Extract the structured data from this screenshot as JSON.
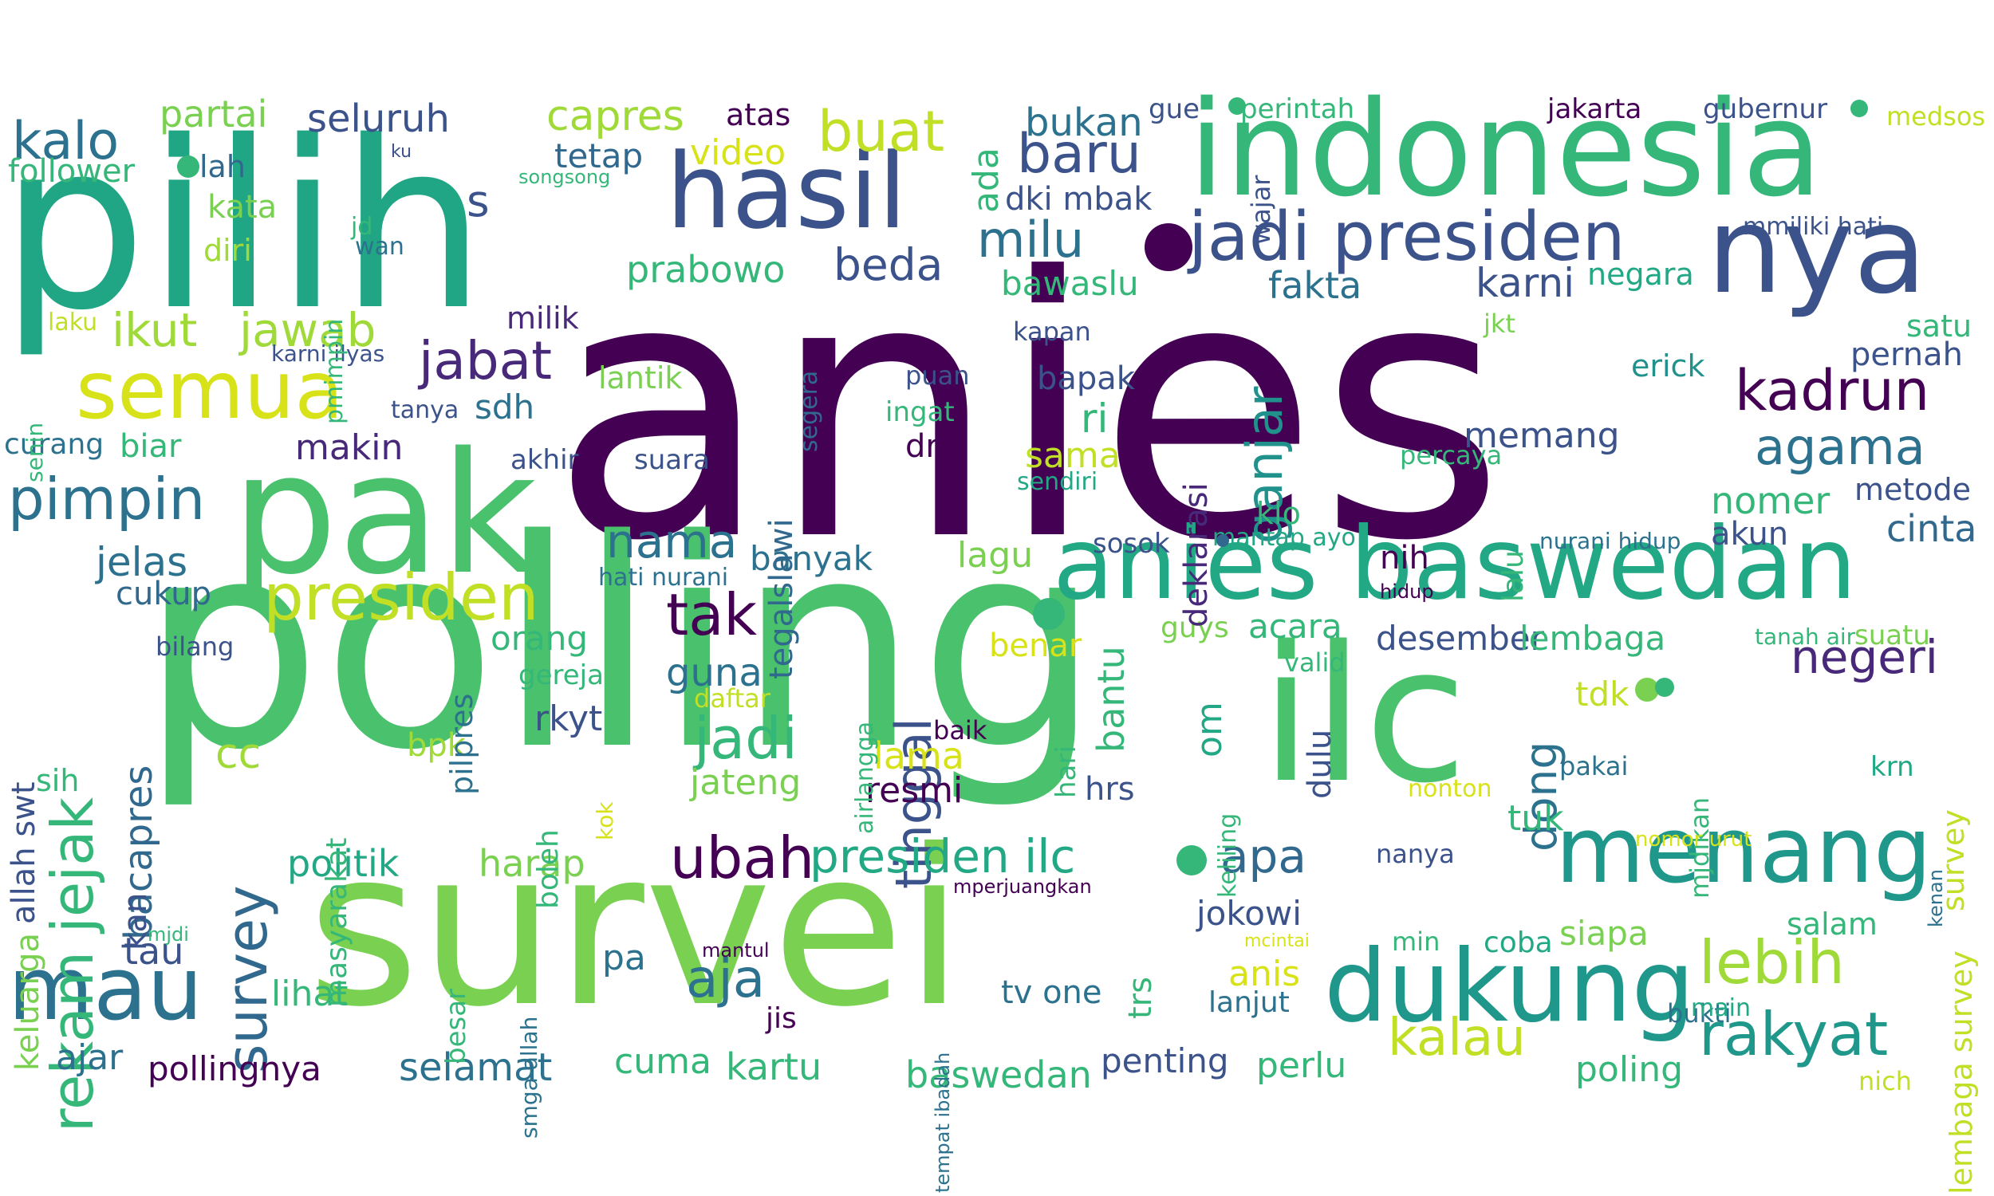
{
  "palette": {
    "deep_purple": "#440154",
    "indigo": "#3b528b",
    "blue": "#31688e",
    "teal": "#21918c",
    "green": "#35b779",
    "lime": "#90d743",
    "yellow": "#c8e020",
    "bright_yellow": "#fde725"
  },
  "words": [
    {
      "text": "anies",
      "color": "#440154"
    },
    {
      "text": "polling",
      "color": "#4ac16d"
    },
    {
      "text": "survei",
      "color": "#7ad151"
    },
    {
      "text": "pilih",
      "color": "#21a685"
    },
    {
      "text": "ilc",
      "color": "#4ac16d"
    },
    {
      "text": "pak",
      "color": "#4ac16d"
    },
    {
      "text": "indonesia",
      "color": "#35b779"
    },
    {
      "text": "anies baswedan",
      "color": "#22a884"
    },
    {
      "text": "dukung",
      "color": "#1f988b"
    },
    {
      "text": "menang",
      "color": "#1f988b"
    },
    {
      "text": "nya",
      "color": "#3b528b"
    },
    {
      "text": "hasil",
      "color": "#3b528b"
    },
    {
      "text": "jadi presiden",
      "color": "#3b528b"
    },
    {
      "text": "semua",
      "color": "#d8e219"
    },
    {
      "text": "presiden",
      "color": "#c0df25"
    },
    {
      "text": "mau",
      "color": "#2c728e"
    },
    {
      "text": "rekam jejak",
      "color": "#35b779"
    },
    {
      "text": "survey",
      "color": "#31688e"
    },
    {
      "text": "pimpin",
      "color": "#2c728e"
    },
    {
      "text": "ubah",
      "color": "#440154"
    },
    {
      "text": "lebih",
      "color": "#a0da39"
    },
    {
      "text": "rakyat",
      "color": "#1f988b"
    },
    {
      "text": "agama",
      "color": "#2c728e"
    },
    {
      "text": "kadrun",
      "color": "#440154"
    },
    {
      "text": "kalo",
      "color": "#2c728e"
    },
    {
      "text": "tak",
      "color": "#440154"
    },
    {
      "text": "jadi",
      "color": "#35b779"
    },
    {
      "text": "tinggal",
      "color": "#3b528b"
    },
    {
      "text": "aja",
      "color": "#2c728e"
    },
    {
      "text": "kalau",
      "color": "#c0df25"
    },
    {
      "text": "buat",
      "color": "#c0df25"
    },
    {
      "text": "baru",
      "color": "#3b528b"
    },
    {
      "text": "milu",
      "color": "#2c728e"
    },
    {
      "text": "beda",
      "color": "#3b528b"
    },
    {
      "text": "ganjar",
      "color": "#21918c"
    },
    {
      "text": "jabat",
      "color": "#482878"
    },
    {
      "text": "ikut",
      "color": "#a0da39"
    },
    {
      "text": "jawab",
      "color": "#a0da39"
    },
    {
      "text": "nama",
      "color": "#2c728e"
    },
    {
      "text": "negeri",
      "color": "#482878"
    },
    {
      "text": "apa",
      "color": "#31688e"
    },
    {
      "text": "presiden ilc",
      "color": "#22a884"
    },
    {
      "text": "dong",
      "color": "#2c728e"
    },
    {
      "text": "s",
      "color": "#3b528b"
    },
    {
      "text": "capres",
      "color": "#a0da39"
    },
    {
      "text": "partai",
      "color": "#7ad151"
    },
    {
      "text": "seluruh",
      "color": "#3b528b"
    },
    {
      "text": "bukan",
      "color": "#2c728e"
    },
    {
      "text": "prabowo",
      "color": "#35b779"
    },
    {
      "text": "video",
      "color": "#d8e219"
    },
    {
      "text": "tetap",
      "color": "#31688e"
    },
    {
      "text": "atas",
      "color": "#440154"
    },
    {
      "text": "follower",
      "color": "#35b779"
    },
    {
      "text": "lah",
      "color": "#31688e"
    },
    {
      "text": "kata",
      "color": "#7ad151"
    },
    {
      "text": "diri",
      "color": "#a0da39"
    },
    {
      "text": "jelas",
      "color": "#2c728e"
    },
    {
      "text": "cukup",
      "color": "#31688e"
    },
    {
      "text": "biar",
      "color": "#35b779"
    },
    {
      "text": "curang",
      "color": "#2c728e"
    },
    {
      "text": "makin",
      "color": "#482878"
    },
    {
      "text": "sdh",
      "color": "#2c728e"
    },
    {
      "text": "lantik",
      "color": "#7ad151"
    },
    {
      "text": "milik",
      "color": "#482878"
    },
    {
      "text": "bacapres",
      "color": "#31688e"
    },
    {
      "text": "kan",
      "color": "#3b528b"
    },
    {
      "text": "cc",
      "color": "#a0da39"
    },
    {
      "text": "politik",
      "color": "#22a884"
    },
    {
      "text": "harap",
      "color": "#7ad151"
    },
    {
      "text": "tau",
      "color": "#3b528b"
    },
    {
      "text": "ajar",
      "color": "#2c728e"
    },
    {
      "text": "pollingnya",
      "color": "#440154"
    },
    {
      "text": "selamat",
      "color": "#2c728e"
    },
    {
      "text": "cuma",
      "color": "#35b779"
    },
    {
      "text": "kartu",
      "color": "#35b779"
    },
    {
      "text": "baswedan",
      "color": "#35b779"
    },
    {
      "text": "penting",
      "color": "#3b528b"
    },
    {
      "text": "perlu",
      "color": "#35b779"
    },
    {
      "text": "poling",
      "color": "#35b779"
    },
    {
      "text": "bukti",
      "color": "#2c728e"
    },
    {
      "text": "nich",
      "color": "#c0df25"
    },
    {
      "text": "lihat",
      "color": "#35b779"
    },
    {
      "text": "pa",
      "color": "#2c728e"
    },
    {
      "text": "jis",
      "color": "#440154"
    },
    {
      "text": "tv one",
      "color": "#2c728e"
    },
    {
      "text": "trs",
      "color": "#35b779"
    },
    {
      "text": "lanjut",
      "color": "#2c728e"
    },
    {
      "text": "anis",
      "color": "#d8e219"
    },
    {
      "text": "jokowi",
      "color": "#3b528b"
    },
    {
      "text": "siapa",
      "color": "#7ad151"
    },
    {
      "text": "coba",
      "color": "#22a884"
    },
    {
      "text": "min",
      "color": "#35b779"
    },
    {
      "text": "salam",
      "color": "#35b779"
    },
    {
      "text": "main",
      "color": "#22a884"
    },
    {
      "text": "tuk",
      "color": "#35b779"
    },
    {
      "text": "nanya",
      "color": "#3b528b"
    },
    {
      "text": "nonton",
      "color": "#d8e219"
    },
    {
      "text": "pakai",
      "color": "#2c728e"
    },
    {
      "text": "tdk",
      "color": "#c0df25"
    },
    {
      "text": "krn",
      "color": "#22a884"
    },
    {
      "text": "banyak",
      "color": "#2c728e"
    },
    {
      "text": "lagu",
      "color": "#7ad151"
    },
    {
      "text": "guna",
      "color": "#2c728e"
    },
    {
      "text": "lama",
      "color": "#d8e219"
    },
    {
      "text": "resmi",
      "color": "#440154"
    },
    {
      "text": "jateng",
      "color": "#7ad151"
    },
    {
      "text": "rkyt",
      "color": "#3b528b"
    },
    {
      "text": "orang",
      "color": "#35b779"
    },
    {
      "text": "gereja",
      "color": "#35b779"
    },
    {
      "text": "daftar",
      "color": "#c0df25"
    },
    {
      "text": "bpk",
      "color": "#a0da39"
    },
    {
      "text": "benar",
      "color": "#d8e219"
    },
    {
      "text": "bantu",
      "color": "#35b779"
    },
    {
      "text": "hrs",
      "color": "#3b528b"
    },
    {
      "text": "om",
      "color": "#22a884"
    },
    {
      "text": "dulu",
      "color": "#3b528b"
    },
    {
      "text": "acara",
      "color": "#35b779"
    },
    {
      "text": "desember",
      "color": "#3b528b"
    },
    {
      "text": "lembaga",
      "color": "#35b779"
    },
    {
      "text": "guys",
      "color": "#7ad151"
    },
    {
      "text": "valid",
      "color": "#35b779"
    },
    {
      "text": "nih",
      "color": "#440154"
    },
    {
      "text": "klo",
      "color": "#35b779"
    },
    {
      "text": "memang",
      "color": "#3b528b"
    },
    {
      "text": "nomer",
      "color": "#35b779"
    },
    {
      "text": "akun",
      "color": "#3b528b"
    },
    {
      "text": "cinta",
      "color": "#31688e"
    },
    {
      "text": "metode",
      "color": "#3b528b"
    },
    {
      "text": "pernah",
      "color": "#3b528b"
    },
    {
      "text": "satu",
      "color": "#35b779"
    },
    {
      "text": "erick",
      "color": "#21918c"
    },
    {
      "text": "karni",
      "color": "#3b528b"
    },
    {
      "text": "negara",
      "color": "#22a884"
    },
    {
      "text": "fakta",
      "color": "#2c728e"
    },
    {
      "text": "bawaslu",
      "color": "#35b779"
    },
    {
      "text": "dki mbak",
      "color": "#3b528b"
    },
    {
      "text": "ada",
      "color": "#35b779"
    },
    {
      "text": "gue",
      "color": "#3b528b"
    },
    {
      "text": "perintah",
      "color": "#35b779"
    },
    {
      "text": "wajar",
      "color": "#3b528b"
    },
    {
      "text": "jakarta",
      "color": "#440154"
    },
    {
      "text": "gubernur",
      "color": "#3b528b"
    },
    {
      "text": "medsos",
      "color": "#c0df25"
    },
    {
      "text": "mmiliki hati",
      "color": "#3b528b"
    },
    {
      "text": "jkt",
      "color": "#7ad151"
    },
    {
      "text": "kapan",
      "color": "#3b528b"
    },
    {
      "text": "puan",
      "color": "#3b528b"
    },
    {
      "text": "ingat",
      "color": "#35b779"
    },
    {
      "text": "bapak",
      "color": "#3b528b"
    },
    {
      "text": "ri",
      "color": "#35b779"
    },
    {
      "text": "dr",
      "color": "#440154"
    },
    {
      "text": "sama",
      "color": "#c0df25"
    },
    {
      "text": "sendiri",
      "color": "#22a884"
    },
    {
      "text": "deklarasi",
      "color": "#482878"
    },
    {
      "text": "percaya",
      "color": "#35b779"
    },
    {
      "text": "lalu",
      "color": "#35b779"
    },
    {
      "text": "sosok",
      "color": "#3b528b"
    },
    {
      "text": "mantap ayo",
      "color": "#22a884"
    },
    {
      "text": "nurani hidup",
      "color": "#2c728e"
    },
    {
      "text": "hidup",
      "color": "#440154"
    },
    {
      "text": "tanah air",
      "color": "#35b779"
    },
    {
      "text": "suatu",
      "color": "#7ad151"
    },
    {
      "text": "akhir",
      "color": "#3b528b"
    },
    {
      "text": "suara",
      "color": "#3b528b"
    },
    {
      "text": "tegalslawi",
      "color": "#31688e"
    },
    {
      "text": "segera",
      "color": "#31688e"
    },
    {
      "text": "hati nurani",
      "color": "#2c728e"
    },
    {
      "text": "airlangga",
      "color": "#35b779"
    },
    {
      "text": "baik",
      "color": "#440154"
    },
    {
      "text": "hari",
      "color": "#35b779"
    },
    {
      "text": "keliling",
      "color": "#35b779"
    },
    {
      "text": "mjdikan",
      "color": "#35b779"
    },
    {
      "text": "survey",
      "color": "#c0df25"
    },
    {
      "text": "lembaga survey",
      "color": "#c0df25"
    },
    {
      "text": "nomor urut",
      "color": "#d8e219"
    },
    {
      "text": "kenan",
      "color": "#2c728e"
    },
    {
      "text": "mperjuangkan",
      "color": "#440154"
    },
    {
      "text": "mcintai",
      "color": "#d8e219"
    },
    {
      "text": "mantul",
      "color": "#440154"
    },
    {
      "text": "tempat ibadah",
      "color": "#2c728e"
    },
    {
      "text": "smga allah",
      "color": "#2c728e"
    },
    {
      "text": "besar",
      "color": "#35b779"
    },
    {
      "text": "pilpres",
      "color": "#2c728e"
    },
    {
      "text": "masyarakat",
      "color": "#35b779"
    },
    {
      "text": "boleh",
      "color": "#35b779"
    },
    {
      "text": "kok",
      "color": "#d8e219"
    },
    {
      "text": "keluarga",
      "color": "#7ad151"
    },
    {
      "text": "allah swt",
      "color": "#3b528b"
    },
    {
      "text": "sih",
      "color": "#35b779"
    },
    {
      "text": "bilang",
      "color": "#3b528b"
    },
    {
      "text": "mjdi",
      "color": "#35b779"
    },
    {
      "text": "senin",
      "color": "#35b779"
    },
    {
      "text": "tanya",
      "color": "#3b528b"
    },
    {
      "text": "karni ilyas",
      "color": "#3b528b"
    },
    {
      "text": "laku",
      "color": "#c0df25"
    },
    {
      "text": "pmimpin",
      "color": "#35b779"
    },
    {
      "text": "jd",
      "color": "#35b779"
    },
    {
      "text": "wan",
      "color": "#2c728e"
    },
    {
      "text": "ku",
      "color": "#3b528b"
    },
    {
      "text": "songsong",
      "color": "#35b779"
    }
  ],
  "dots": [
    {
      "color": "#440154"
    },
    {
      "color": "#35b779"
    },
    {
      "color": "#35b779"
    },
    {
      "color": "#7ad151"
    },
    {
      "color": "#35b779"
    },
    {
      "color": "#35b779"
    },
    {
      "color": "#31688e"
    },
    {
      "color": "#35b779"
    },
    {
      "color": "#35b779"
    }
  ]
}
